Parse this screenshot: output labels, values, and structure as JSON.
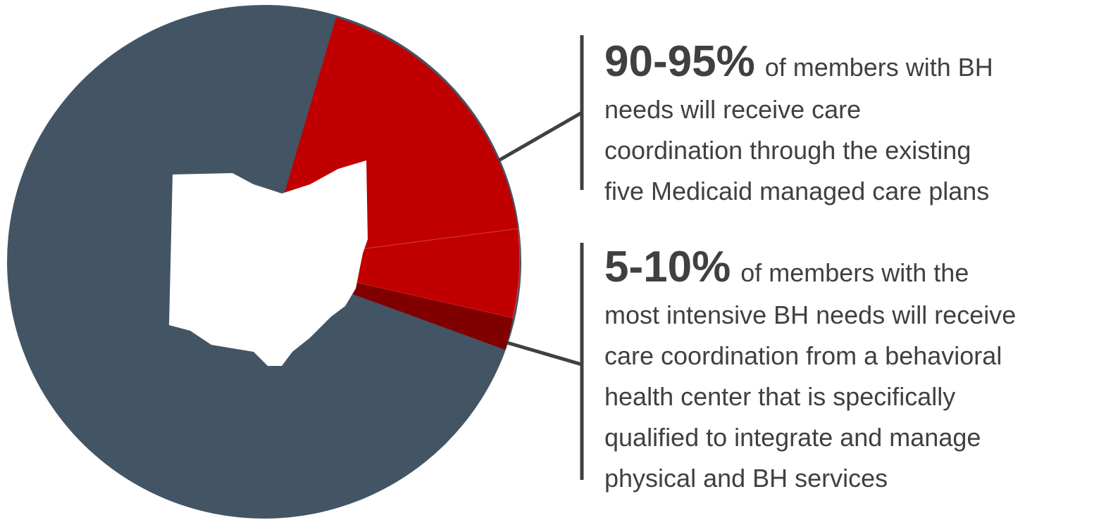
{
  "blocks": [
    {
      "highlight": "90-95%",
      "lines": [
        "of members with BH",
        "needs will receive care",
        "coordination through the existing",
        "five Medicaid managed care plans"
      ]
    },
    {
      "highlight": "5-10%",
      "lines": [
        "of members with the",
        "most intensive BH needs will receive",
        "care coordination from a behavioral",
        "health center that is specifically",
        "qualified to integrate and manage",
        "physical and BH services"
      ]
    }
  ]
}
